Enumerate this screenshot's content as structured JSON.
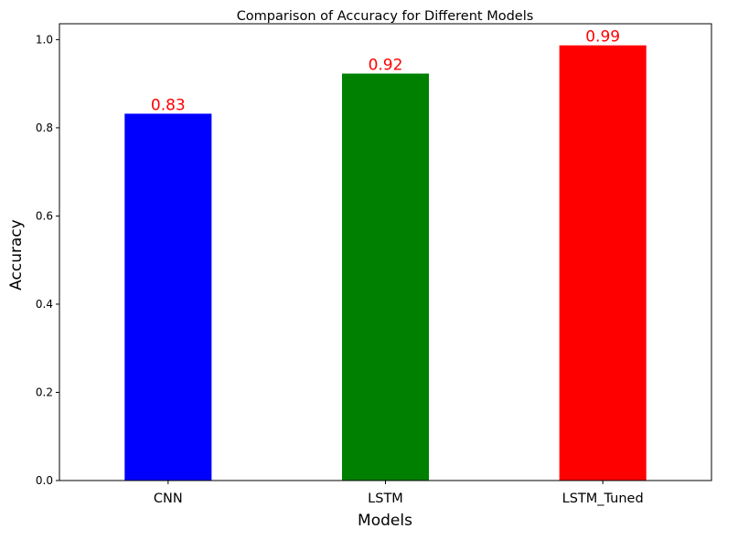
{
  "chart_data": {
    "type": "bar",
    "title": "Comparison of Accuracy for Different Models",
    "xlabel": "Models",
    "ylabel": "Accuracy",
    "categories": [
      "CNN",
      "LSTM",
      "LSTM_Tuned"
    ],
    "values": [
      0.832,
      0.923,
      0.987
    ],
    "data_labels": [
      "0.83",
      "0.92",
      "0.99"
    ],
    "colors": [
      "#0000ff",
      "#008000",
      "#ff0000"
    ],
    "data_label_color": "#ff0000",
    "ylim": [
      0,
      1.036
    ],
    "yticks": [
      0.0,
      0.2,
      0.4,
      0.6,
      0.8,
      1.0
    ],
    "ytick_labels": [
      "0.0",
      "0.2",
      "0.4",
      "0.6",
      "0.8",
      "1.0"
    ],
    "grid": false,
    "legend": "none"
  }
}
